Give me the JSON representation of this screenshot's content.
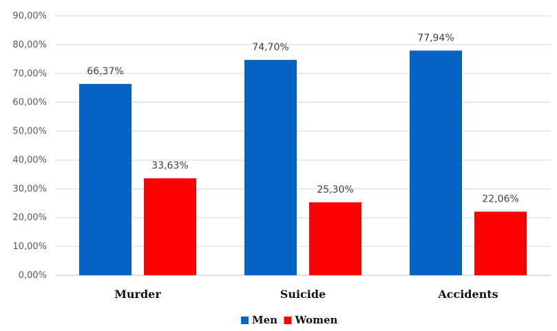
{
  "chart_data": {
    "type": "bar",
    "categories": [
      "Murder",
      "Suicide",
      "Accidents"
    ],
    "series": [
      {
        "name": "Men",
        "color": "#0563C1",
        "values": [
          66.37,
          74.7,
          77.94
        ],
        "labels": [
          "66,37%",
          "74,70%",
          "77,94%"
        ]
      },
      {
        "name": "Women",
        "color": "#FF0000",
        "values": [
          33.63,
          25.3,
          22.06
        ],
        "labels": [
          "33,63%",
          "25,30%",
          "22,06%"
        ]
      }
    ],
    "ylim": [
      0,
      90
    ],
    "yticks": [
      0,
      10,
      20,
      30,
      40,
      50,
      60,
      70,
      80,
      90
    ],
    "ytick_labels": [
      "0,00%",
      "10,00%",
      "20,00%",
      "30,00%",
      "40,00%",
      "50,00%",
      "60,00%",
      "70,00%",
      "80,00%",
      "90,00%"
    ],
    "grid": true,
    "legend_position": "bottom",
    "title": "",
    "xlabel": "",
    "ylabel": ""
  }
}
